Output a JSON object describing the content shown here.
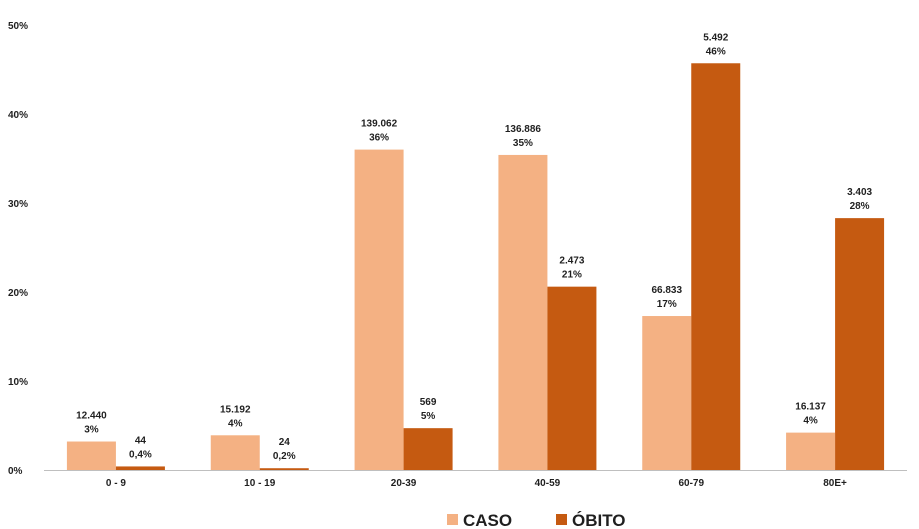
{
  "chart_data": {
    "type": "bar",
    "categories": [
      "0 - 9",
      "10 - 19",
      "20-39",
      "40-59",
      "60-79",
      "80E+"
    ],
    "yticks": [
      "0%",
      "10%",
      "20%",
      "30%",
      "40%",
      "50%"
    ],
    "ylim": [
      0,
      50
    ],
    "grid": false,
    "legend_position": "bottom",
    "series": [
      {
        "name": "CASO",
        "color": "#F4B183",
        "values": [
          3.2,
          3.9,
          36,
          35.4,
          17.3,
          4.2
        ],
        "count_labels": [
          "12.440",
          "15.192",
          "139.062",
          "136.886",
          "66.833",
          "16.137"
        ],
        "pct_labels": [
          "3%",
          "4%",
          "36%",
          "35%",
          "17%",
          "4%"
        ]
      },
      {
        "name": "ÓBITO",
        "color": "#C55A11",
        "values": [
          0.4,
          0.2,
          4.7,
          20.6,
          45.7,
          28.3
        ],
        "count_labels": [
          "44",
          "24",
          "569",
          "2.473",
          "5.492",
          "3.403"
        ],
        "pct_labels": [
          "0,4%",
          "0,2%",
          "5%",
          "21%",
          "46%",
          "28%"
        ]
      }
    ]
  }
}
